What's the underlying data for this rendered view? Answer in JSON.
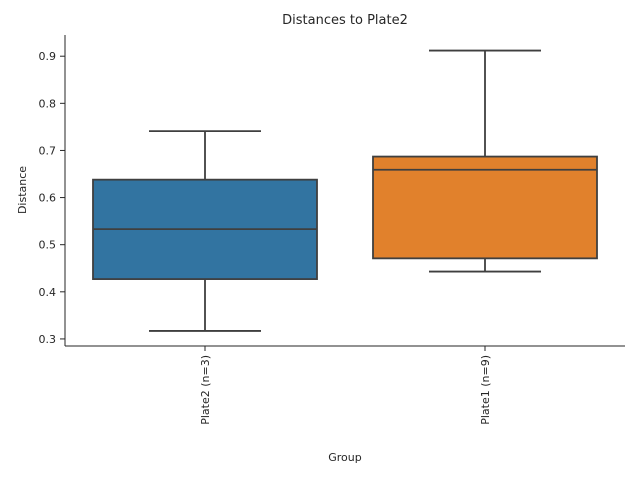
{
  "chart_data": {
    "type": "box",
    "title": "Distances to Plate2",
    "xlabel": "Group",
    "ylabel": "Distance",
    "ylim": [
      0.285,
      0.945
    ],
    "yticks": [
      "0.3",
      "0.4",
      "0.5",
      "0.6",
      "0.7",
      "0.8",
      "0.9"
    ],
    "grid": false,
    "categories": [
      "Plate2 (n=3)",
      "Plate1 (n=9)"
    ],
    "boxes": [
      {
        "category": "Plate2 (n=3)",
        "whisker_low": 0.317,
        "q1": 0.427,
        "median": 0.533,
        "q3": 0.638,
        "whisker_high": 0.741,
        "color": "#3274a1"
      },
      {
        "category": "Plate1 (n=9)",
        "whisker_low": 0.443,
        "q1": 0.471,
        "median": 0.659,
        "q3": 0.687,
        "whisker_high": 0.912,
        "color": "#e1812c"
      }
    ],
    "line_color": "#3f3f3f"
  }
}
